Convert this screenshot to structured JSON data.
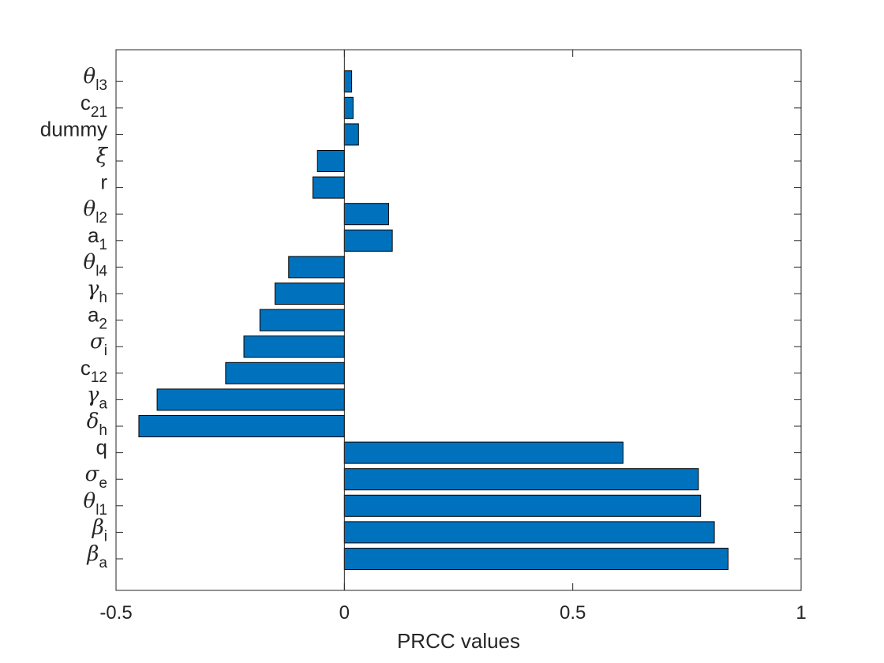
{
  "chart_data": {
    "type": "bar",
    "orientation": "horizontal",
    "title": "",
    "xlabel": "PRCC values",
    "ylabel": "",
    "xlim": [
      -0.5,
      1
    ],
    "xticks": [
      -0.5,
      0,
      0.5,
      1
    ],
    "xtick_labels": [
      "-0.5",
      "0",
      "0.5",
      "1"
    ],
    "grid": false,
    "legend": "none",
    "bar_color": "#0072BD",
    "categories": [
      {
        "label": "β",
        "sub": "a",
        "greek": true
      },
      {
        "label": "β",
        "sub": "i",
        "greek": true
      },
      {
        "label": "θ",
        "sub": "l1",
        "greek": true
      },
      {
        "label": "σ",
        "sub": "e",
        "greek": true
      },
      {
        "label": "q",
        "sub": "",
        "greek": false
      },
      {
        "label": "δ",
        "sub": "h",
        "greek": true
      },
      {
        "label": "γ",
        "sub": "a",
        "greek": true
      },
      {
        "label": "c",
        "sub": "12",
        "greek": false
      },
      {
        "label": "σ",
        "sub": "i",
        "greek": true
      },
      {
        "label": "a",
        "sub": "2",
        "greek": false
      },
      {
        "label": "γ",
        "sub": "h",
        "greek": true
      },
      {
        "label": "θ",
        "sub": "l4",
        "greek": true
      },
      {
        "label": "a",
        "sub": "1",
        "greek": false
      },
      {
        "label": "θ",
        "sub": "l2",
        "greek": true
      },
      {
        "label": "r",
        "sub": "",
        "greek": false
      },
      {
        "label": "ξ",
        "sub": "",
        "greek": true
      },
      {
        "label": "dummy",
        "sub": "",
        "greek": false
      },
      {
        "label": "c",
        "sub": "21",
        "greek": false
      },
      {
        "label": "θ",
        "sub": "l3",
        "greek": true
      }
    ],
    "values": [
      0.84,
      0.81,
      0.78,
      0.775,
      0.61,
      -0.45,
      -0.41,
      -0.26,
      -0.22,
      -0.185,
      -0.152,
      -0.122,
      0.105,
      0.097,
      -0.069,
      -0.059,
      0.031,
      0.019,
      0.016
    ]
  }
}
